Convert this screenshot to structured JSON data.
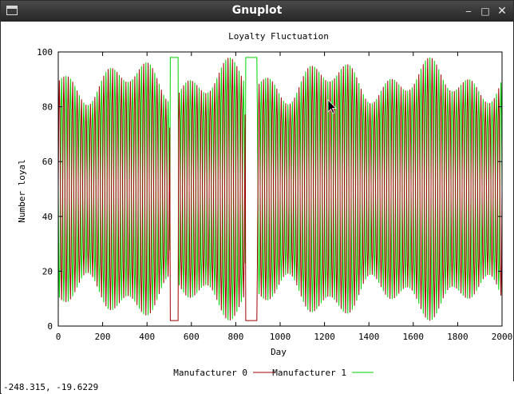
{
  "window": {
    "title": "Gnuplot"
  },
  "window_controls": {
    "minimize": "‒",
    "maximize": "□",
    "close": "✕"
  },
  "status": {
    "coordinates": "-248.315, -19.6229"
  },
  "chart_data": {
    "type": "line",
    "title": "Loyalty Fluctuation",
    "xlabel": "Day",
    "ylabel": "Number loyal",
    "xlim": [
      0,
      2000
    ],
    "ylim": [
      0,
      100
    ],
    "xticks": [
      "0",
      "200",
      "400",
      "600",
      "800",
      "1000",
      "1200",
      "1400",
      "1600",
      "1800",
      "2000"
    ],
    "yticks": [
      "0",
      "20",
      "40",
      "60",
      "80",
      "100"
    ],
    "grid": false,
    "legend_position": "bottom-center",
    "series": [
      {
        "name": "Manufacturer 0",
        "color": "#a00000",
        "period_days": 20
      },
      {
        "name": "Manufacturer 1",
        "color": "#00d000",
        "period_days": 20
      }
    ],
    "flat_segments": [
      {
        "x": [
          505,
          540
        ],
        "manufacturer0": 2,
        "manufacturer1": 98
      },
      {
        "x": [
          845,
          895
        ],
        "manufacturer0": 2,
        "manufacturer1": 98
      }
    ]
  }
}
